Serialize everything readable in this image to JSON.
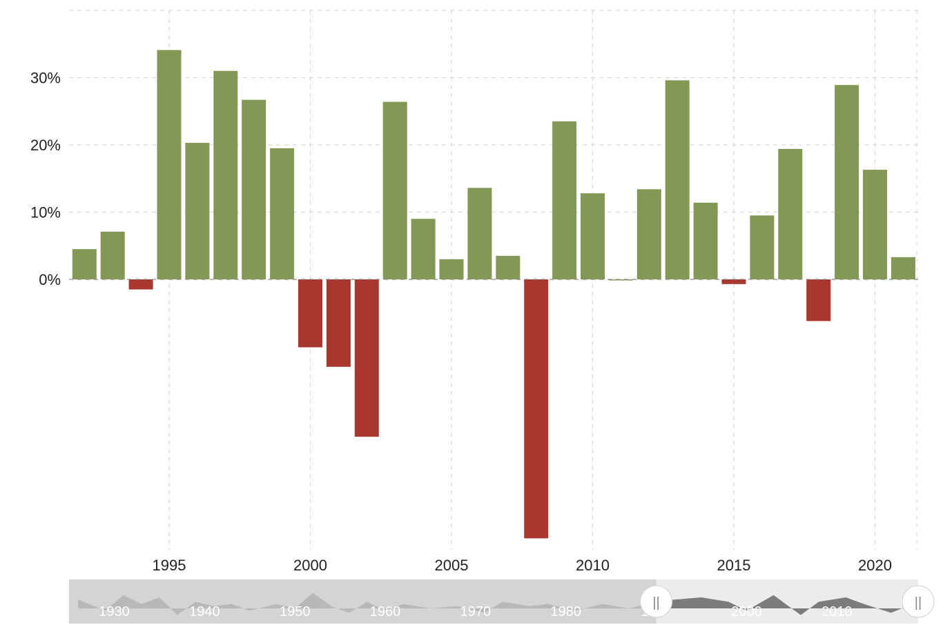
{
  "chart_data": {
    "type": "bar",
    "title": "",
    "xlabel": "",
    "ylabel": "",
    "x": [
      1992,
      1993,
      1994,
      1995,
      1996,
      1997,
      1998,
      1999,
      2000,
      2001,
      2002,
      2003,
      2004,
      2005,
      2006,
      2007,
      2008,
      2009,
      2010,
      2011,
      2012,
      2013,
      2014,
      2015,
      2016,
      2017,
      2018,
      2019,
      2020,
      2021
    ],
    "values": [
      4.5,
      7.1,
      -1.5,
      34.1,
      20.3,
      31.0,
      26.7,
      19.5,
      -10.1,
      -13.0,
      -23.4,
      26.4,
      9.0,
      3.0,
      13.6,
      3.5,
      -38.5,
      23.5,
      12.8,
      0.0,
      13.4,
      29.6,
      11.4,
      -0.7,
      9.5,
      19.4,
      -6.2,
      28.9,
      16.3,
      3.3
    ],
    "ylim": [
      -40,
      40
    ],
    "y_ticks": [
      0,
      10,
      20,
      30
    ],
    "y_tick_labels": [
      "0%",
      "10%",
      "20%",
      "30%"
    ],
    "x_tick_years": [
      1995,
      2000,
      2005,
      2010,
      2015,
      2020
    ],
    "x_tick_labels": [
      "1995",
      "2000",
      "2005",
      "2010",
      "2015",
      "2020"
    ],
    "grid": true,
    "colors": {
      "positive": "#849855",
      "negative": "#a8382f",
      "grid": "#d9d9d9"
    },
    "navigator": {
      "labels": [
        "1930",
        "1940",
        "1950",
        "1960",
        "1970",
        "1980",
        "19",
        "2000",
        "2010"
      ],
      "label_years": [
        1930,
        1940,
        1950,
        1960,
        1970,
        1980,
        1990,
        2000,
        2010
      ],
      "range_years": [
        1927,
        2021
      ],
      "selected_years": [
        1992,
        2021
      ],
      "handles": [
        "left-handle",
        "right-handle"
      ],
      "handle_glyph": "||",
      "series_years": [
        1928,
        1931,
        1933,
        1935,
        1937,
        1939,
        1941,
        1943,
        1945,
        1947,
        1950,
        1952,
        1954,
        1956,
        1958,
        1960,
        1962,
        1964,
        1967,
        1970,
        1973,
        1975,
        1978,
        1980,
        1983,
        1986,
        1989,
        1991,
        1994,
        1997,
        2000,
        2002,
        2005,
        2008,
        2010,
        2013,
        2015,
        2018,
        2021
      ],
      "series_values": [
        4,
        -1,
        6,
        2,
        5,
        -3,
        3,
        1,
        2,
        -1,
        2,
        0,
        7,
        1,
        -2,
        3,
        -1,
        2,
        0,
        1,
        -2,
        3,
        1,
        2,
        -1,
        2,
        0,
        2,
        4,
        5,
        3,
        -1,
        6,
        -3,
        3,
        5,
        2,
        -2,
        3
      ]
    }
  }
}
